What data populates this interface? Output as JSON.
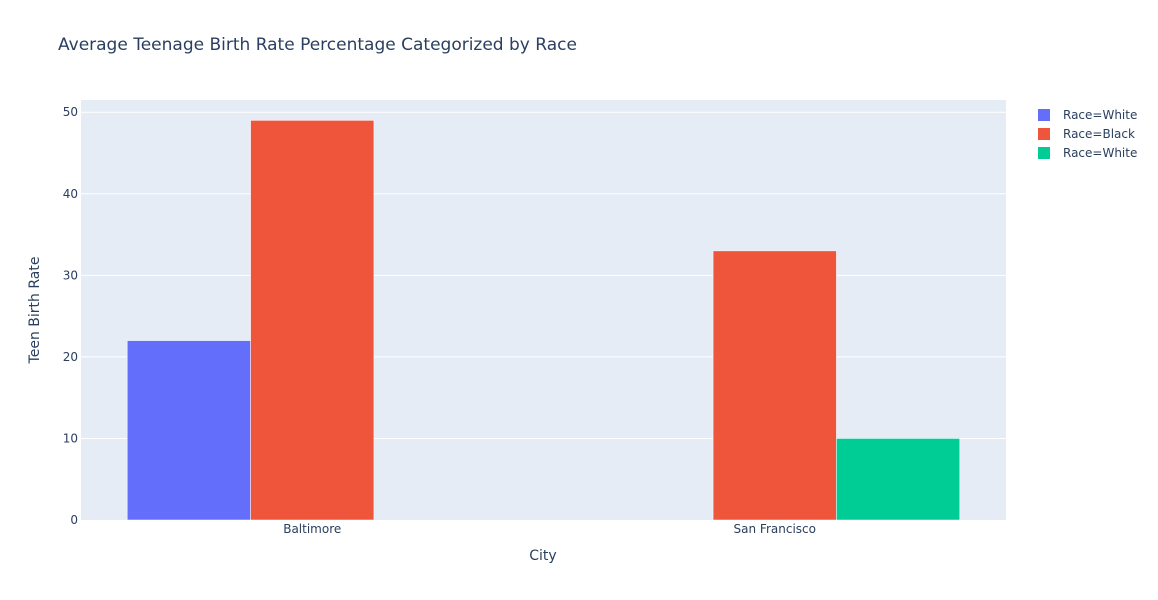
{
  "chart_data": {
    "type": "bar",
    "title": "Average Teenage Birth Rate Percentage Categorized by Race",
    "xlabel": "City",
    "ylabel": "Teen Birth Rate",
    "categories": [
      "Baltimore",
      "San Francisco"
    ],
    "ylim": [
      0,
      51.5
    ],
    "yticks": [
      0,
      10,
      20,
      30,
      40,
      50
    ],
    "grid": true,
    "legend_position": "top-right",
    "series": [
      {
        "name": "Race=White",
        "color": "#636efa",
        "values": [
          22,
          null
        ]
      },
      {
        "name": "Race=Black",
        "color": "#ef553b",
        "values": [
          49,
          33
        ]
      },
      {
        "name": "Race=White",
        "color": "#00cc96",
        "values": [
          null,
          10
        ]
      }
    ]
  }
}
